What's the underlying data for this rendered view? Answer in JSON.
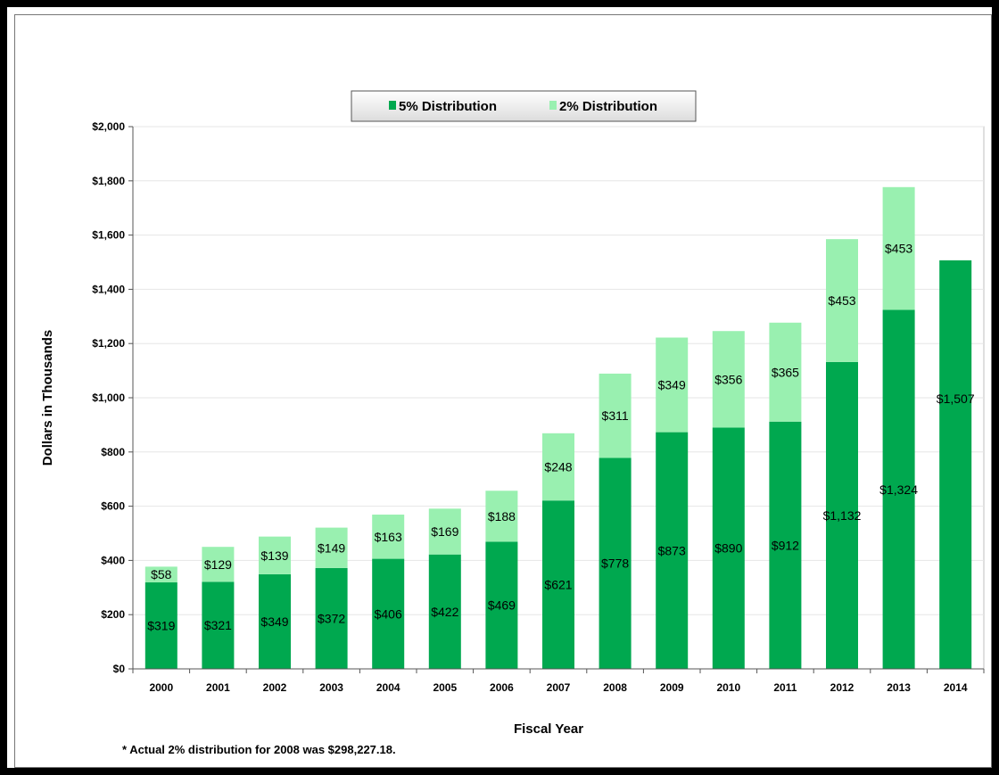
{
  "chart_data": {
    "type": "bar",
    "stacked": true,
    "categories": [
      "2000",
      "2001",
      "2002",
      "2003",
      "2004",
      "2005",
      "2006",
      "2007",
      "2008",
      "2009",
      "2010",
      "2011",
      "2012",
      "2013",
      "2014"
    ],
    "series": [
      {
        "name": "5% Distribution",
        "color": "#00a84f",
        "values": [
          319,
          321,
          349,
          372,
          406,
          422,
          469,
          621,
          778,
          873,
          890,
          912,
          1132,
          1324,
          1507
        ],
        "labels": [
          "$319",
          "$321",
          "$349",
          "$372",
          "$406",
          "$422",
          "$469",
          "$621",
          "$778",
          "$873",
          "$890",
          "$912",
          "$1,132",
          "$1,324",
          "$1,507"
        ]
      },
      {
        "name": "2% Distribution",
        "color": "#99f0b0",
        "values": [
          58,
          129,
          139,
          149,
          163,
          169,
          188,
          248,
          311,
          349,
          356,
          365,
          453,
          453,
          null
        ],
        "labels": [
          "$58",
          "$129",
          "$139",
          "$149",
          "$163",
          "$169",
          "$188",
          "$248",
          "$311",
          "$349",
          "$356",
          "$365",
          "$453",
          "$453",
          ""
        ]
      }
    ],
    "xlabel": "Fiscal Year",
    "ylabel": "Dollars in Thousands",
    "ylim": [
      0,
      2000
    ],
    "yticks": [
      0,
      200,
      400,
      600,
      800,
      1000,
      1200,
      1400,
      1600,
      1800,
      2000
    ],
    "ytick_labels": [
      "$0",
      "$200",
      "$400",
      "$600",
      "$800",
      "$1,000",
      "$1,200",
      "$1,400",
      "$1,600",
      "$1,800",
      "$2,000"
    ],
    "grid": "horizontal",
    "legend_position": "top-center",
    "footnote": "* Actual 2% distribution for 2008 was $298,227.18."
  }
}
